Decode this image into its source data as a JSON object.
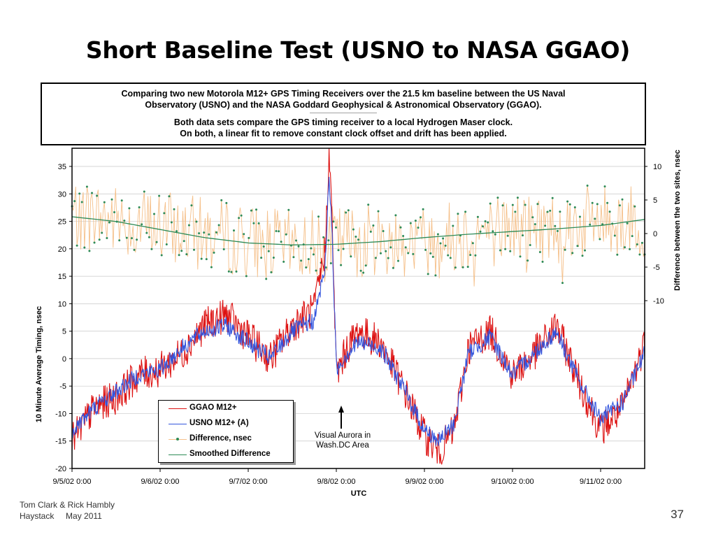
{
  "slide": {
    "title": "Short Baseline Test (USNO to NASA GGAO)",
    "footer_line1": "Tom Clark & Rick Hambly",
    "footer_line2": "Haystack     May 2011",
    "page_number": "37"
  },
  "chart_data": {
    "type": "line",
    "description_lines": [
      "Comparing two new Motorola M12+ GPS Timing Receivers over the 21.5 km baseline between the US Naval",
      "Observatory (USNO) and the NASA Goddard Geophysical & Astronomical Observatory (GGAO).",
      "------------------------------------------------",
      "Both data sets compare the GPS timing receiver to a local Hydrogen Maser clock.",
      "On both, a linear fit to remove constant clock offset and drift has been applied."
    ],
    "xlabel": "UTC",
    "ylabel_left": "10 Minute Average Timing, nsec",
    "ylabel_right": "Difference between the two sites, nsec",
    "x_ticks": [
      "9/5/02 0:00",
      "9/6/02 0:00",
      "9/7/02 0:00",
      "9/8/02 0:00",
      "9/9/02 0:00",
      "9/10/02 0:00",
      "9/11/02 0:00"
    ],
    "x_range_days": [
      "9/5/02 0:00",
      "9/11/02 12:00"
    ],
    "ylim_left": [
      -20,
      35
    ],
    "y_ticks_left": [
      35,
      30,
      25,
      20,
      15,
      10,
      5,
      0,
      -5,
      -10,
      -15,
      -20
    ],
    "ylim_right": [
      -35,
      10
    ],
    "y_ticks_right": [
      10,
      5,
      0,
      -5,
      -10
    ],
    "grid": "horizontal",
    "legend_placement": "lower-left",
    "annotation": {
      "line1": "Visual Aurora in",
      "line2": "Wash.DC Area",
      "x": "9/8/02 0:00"
    },
    "series": [
      {
        "name": "GGAO M12+",
        "axis": "left",
        "color": "#dd1111",
        "x": [
          "9/5/02 0:00",
          "9/5/02 6:00",
          "9/5/02 12:00",
          "9/5/02 18:00",
          "9/6/02 0:00",
          "9/6/02 6:00",
          "9/6/02 12:00",
          "9/6/02 18:00",
          "9/7/02 0:00",
          "9/7/02 6:00",
          "9/7/02 12:00",
          "9/7/02 18:00",
          "9/7/02 21:00",
          "9/7/02 22:00",
          "9/7/02 23:00",
          "9/8/02 0:00",
          "9/8/02 3:00",
          "9/8/02 6:00",
          "9/8/02 12:00",
          "9/8/02 18:00",
          "9/9/02 0:00",
          "9/9/02 4:00",
          "9/9/02 8:00",
          "9/9/02 12:00",
          "9/9/02 18:00",
          "9/10/02 0:00",
          "9/10/02 6:00",
          "9/10/02 12:00",
          "9/10/02 18:00",
          "9/11/02 0:00",
          "9/11/02 6:00",
          "9/11/02 12:00"
        ],
        "values": [
          -15,
          -9,
          -7,
          -3,
          -2,
          1,
          6,
          8,
          4,
          0,
          6,
          9,
          20,
          38,
          22,
          -3,
          2,
          5,
          3,
          -5,
          -14,
          -17,
          -13,
          2,
          5,
          -3,
          1,
          6,
          -4,
          -13,
          -9,
          3
        ]
      },
      {
        "name": "USNO M12+ (A)",
        "axis": "left",
        "color": "#3355dd",
        "x": [
          "9/5/02 0:00",
          "9/5/02 6:00",
          "9/5/02 12:00",
          "9/5/02 18:00",
          "9/6/02 0:00",
          "9/6/02 6:00",
          "9/6/02 12:00",
          "9/6/02 18:00",
          "9/7/02 0:00",
          "9/7/02 6:00",
          "9/7/02 12:00",
          "9/7/02 18:00",
          "9/7/02 21:00",
          "9/7/02 22:00",
          "9/7/02 23:00",
          "9/8/02 0:00",
          "9/8/02 3:00",
          "9/8/02 6:00",
          "9/8/02 12:00",
          "9/8/02 18:00",
          "9/9/02 0:00",
          "9/9/02 4:00",
          "9/9/02 8:00",
          "9/9/02 12:00",
          "9/9/02 18:00",
          "9/10/02 0:00",
          "9/10/02 6:00",
          "9/10/02 12:00",
          "9/10/02 18:00",
          "9/11/02 0:00",
          "9/11/02 6:00",
          "9/11/02 12:00"
        ],
        "values": [
          -13,
          -9,
          -6,
          -3,
          -2,
          2,
          5,
          6,
          3,
          0,
          5,
          7,
          17,
          34,
          20,
          -2,
          1,
          3,
          2,
          -5,
          -13,
          -15,
          -12,
          1,
          4,
          -3,
          1,
          5,
          -4,
          -11,
          -8,
          1
        ]
      },
      {
        "name": "Difference, nsec",
        "axis": "right",
        "color": "#f5c08a",
        "marker_color": "#2e8b57",
        "x": [
          "9/5/02 0:00",
          "9/5/02 12:00",
          "9/6/02 0:00",
          "9/6/02 12:00",
          "9/7/02 0:00",
          "9/7/02 12:00",
          "9/8/02 0:00",
          "9/8/02 12:00",
          "9/9/02 0:00",
          "9/9/02 12:00",
          "9/10/02 0:00",
          "9/10/02 12:00",
          "9/11/02 0:00",
          "9/11/02 12:00"
        ],
        "values": [
          3,
          2,
          1,
          0,
          -1,
          -2,
          -1,
          -1,
          -1,
          0,
          1,
          1,
          2,
          2
        ]
      },
      {
        "name": "Smoothed Difference",
        "axis": "right",
        "color": "#2e8b57",
        "x": [
          "9/5/02 0:00",
          "9/5/02 12:00",
          "9/6/02 0:00",
          "9/6/02 12:00",
          "9/7/02 0:00",
          "9/7/02 12:00",
          "9/8/02 0:00",
          "9/8/02 12:00",
          "9/9/02 0:00",
          "9/9/02 12:00",
          "9/10/02 0:00",
          "9/10/02 12:00",
          "9/11/02 0:00",
          "9/11/02 12:00"
        ],
        "values": [
          2.5,
          1.8,
          0.6,
          -0.6,
          -1.4,
          -1.7,
          -1.6,
          -1.2,
          -0.6,
          -0.1,
          0.3,
          0.7,
          1.2,
          2.1
        ]
      }
    ]
  }
}
